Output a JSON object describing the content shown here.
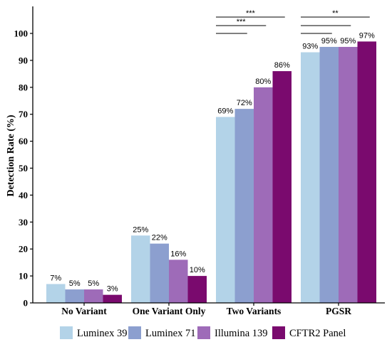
{
  "chart_data": {
    "type": "bar",
    "title": "",
    "xlabel": "",
    "ylabel": "Detection Rate (%)",
    "ylim": [
      0,
      110
    ],
    "yticks": [
      0,
      10,
      20,
      30,
      40,
      50,
      60,
      70,
      80,
      90,
      100
    ],
    "grid": false,
    "legend_position": "bottom",
    "categories": [
      "No Variant",
      "One Variant Only",
      "Two Variants",
      "PGSR"
    ],
    "series": [
      {
        "name": "Luminex 39",
        "color": "#b3d3e8",
        "values": [
          7,
          25,
          69,
          93
        ],
        "labels": [
          "7%",
          "25%",
          "69%",
          "93%"
        ]
      },
      {
        "name": "Luminex 71",
        "color": "#8c9fcf",
        "values": [
          5,
          22,
          72,
          95
        ],
        "labels": [
          "5%",
          "22%",
          "72%",
          "95%"
        ]
      },
      {
        "name": "Illumina 139",
        "color": "#9e6bb8",
        "values": [
          5,
          16,
          80,
          95
        ],
        "labels": [
          "5%",
          "16%",
          "80%",
          "95%"
        ]
      },
      {
        "name": "CFTR2 Panel",
        "color": "#7a0a6e",
        "values": [
          3,
          10,
          86,
          97
        ],
        "labels": [
          "3%",
          "10%",
          "86%",
          "97%"
        ]
      }
    ],
    "significance": [
      {
        "category": 2,
        "text": "***",
        "from_series": 0,
        "to_series": 3
      },
      {
        "category": 2,
        "text": "***",
        "from_series": 0,
        "to_series": 2
      },
      {
        "category": 2,
        "text": "",
        "from_series": 0,
        "to_series": 1
      },
      {
        "category": 3,
        "text": "**",
        "from_series": 0,
        "to_series": 3
      },
      {
        "category": 3,
        "text": "",
        "from_series": 0,
        "to_series": 2
      },
      {
        "category": 3,
        "text": "",
        "from_series": 0,
        "to_series": 1
      }
    ]
  }
}
